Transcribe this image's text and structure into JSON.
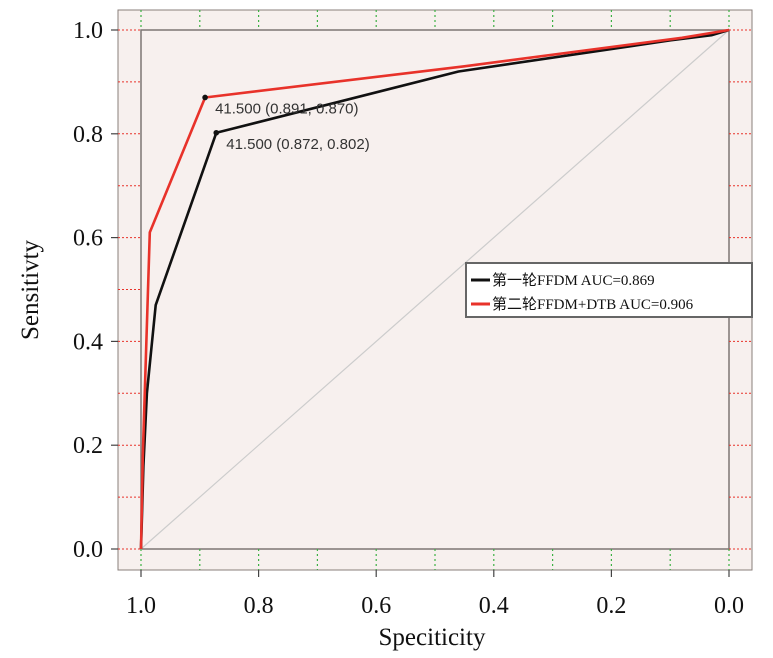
{
  "chart_data": {
    "type": "line",
    "xlabel": "Speciticity",
    "ylabel": "Sensitivty",
    "xlim": [
      1.0,
      0.0
    ],
    "ylim": [
      0.0,
      1.0
    ],
    "x_reversed": true,
    "x_ticks": [
      1.0,
      0.8,
      0.6,
      0.4,
      0.2,
      0.0
    ],
    "x_tick_labels": [
      "1.0",
      "0.8",
      "0.6",
      "0.4",
      "0.2",
      "0.0"
    ],
    "y_ticks": [
      0.0,
      0.2,
      0.4,
      0.6,
      0.8,
      1.0
    ],
    "y_tick_labels": [
      "0.0",
      "0.2",
      "0.4",
      "0.6",
      "0.8",
      "1.0"
    ],
    "grid": true,
    "legend_position": "right",
    "reference_line": {
      "from": [
        1.0,
        0.0
      ],
      "to": [
        0.0,
        1.0
      ],
      "color": "#cccccc"
    },
    "series": [
      {
        "name": "第一轮FFDM AUC=0.869",
        "color": "#111111",
        "points": [
          [
            1.0,
            0.0
          ],
          [
            0.996,
            0.16
          ],
          [
            0.99,
            0.3
          ],
          [
            0.975,
            0.47
          ],
          [
            0.872,
            0.802
          ],
          [
            0.46,
            0.92
          ],
          [
            0.1,
            0.98
          ],
          [
            0.03,
            0.99
          ],
          [
            0.0,
            1.0
          ]
        ]
      },
      {
        "name": "第二轮FFDM+DTB AUC=0.906",
        "color": "#e8322a",
        "points": [
          [
            1.0,
            0.0
          ],
          [
            0.997,
            0.18
          ],
          [
            0.985,
            0.61
          ],
          [
            0.891,
            0.87
          ],
          [
            0.45,
            0.93
          ],
          [
            0.08,
            0.985
          ],
          [
            0.0,
            1.0
          ]
        ]
      }
    ],
    "annotations": [
      {
        "text": "41.500 (0.891, 0.870)",
        "x": 0.891,
        "y": 0.87,
        "series": 1
      },
      {
        "text": "41.500 (0.872, 0.802)",
        "x": 0.872,
        "y": 0.802,
        "series": 0
      }
    ]
  }
}
